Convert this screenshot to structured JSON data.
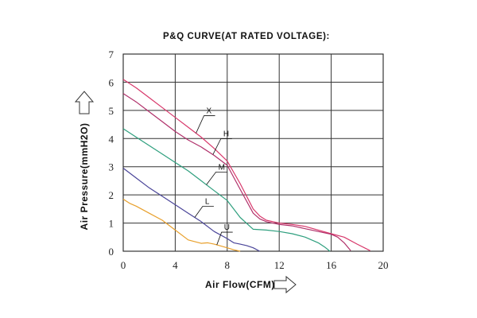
{
  "chart_data": {
    "type": "line",
    "title": "P&Q CURVE(AT RATED VOLTAGE):",
    "xlabel": "Air Flow(CFM)",
    "ylabel": "Air Pressure(mmH2O)",
    "xlim": [
      0,
      20
    ],
    "ylim": [
      0,
      7
    ],
    "xticks": [
      0,
      4,
      8,
      12,
      16,
      20
    ],
    "yticks": [
      0,
      1,
      2,
      3,
      4,
      5,
      6,
      7
    ],
    "grid": true,
    "legend": "inline labels with leader lines",
    "series": [
      {
        "name": "X",
        "color": "#d8386b",
        "x": [
          0,
          1,
          2,
          3,
          4,
          5,
          6,
          7,
          8,
          9,
          10,
          10.5,
          11,
          12,
          13,
          14,
          15,
          16,
          17,
          18,
          19
        ],
        "y": [
          6.1,
          5.8,
          5.45,
          5.1,
          4.75,
          4.4,
          4.05,
          3.65,
          3.2,
          2.4,
          1.5,
          1.25,
          1.1,
          1.0,
          0.95,
          0.88,
          0.75,
          0.62,
          0.5,
          0.25,
          0.02
        ]
      },
      {
        "name": "H",
        "color": "#b0306a",
        "x": [
          0,
          1,
          2,
          3,
          4,
          5,
          6,
          7,
          8,
          9,
          10,
          10.5,
          11,
          12,
          13,
          14,
          15,
          16,
          16.5,
          17,
          17.5
        ],
        "y": [
          5.6,
          5.3,
          4.95,
          4.6,
          4.25,
          3.95,
          3.7,
          3.4,
          3.05,
          2.2,
          1.35,
          1.15,
          1.05,
          0.95,
          0.9,
          0.8,
          0.7,
          0.6,
          0.5,
          0.3,
          0.02
        ]
      },
      {
        "name": "M",
        "color": "#2e9f7e",
        "x": [
          0,
          1,
          2,
          3,
          4,
          5,
          6,
          7,
          8,
          9,
          10,
          11,
          12,
          13,
          14,
          15,
          15.5,
          15.9
        ],
        "y": [
          4.35,
          4.05,
          3.75,
          3.45,
          3.15,
          2.85,
          2.5,
          2.15,
          1.8,
          1.2,
          0.78,
          0.75,
          0.7,
          0.62,
          0.5,
          0.3,
          0.15,
          0.0
        ]
      },
      {
        "name": "L",
        "color": "#4a4599",
        "x": [
          0,
          1,
          2,
          3,
          4,
          5,
          6,
          7,
          8,
          8.5,
          9,
          9.5,
          10,
          10.5
        ],
        "y": [
          2.95,
          2.6,
          2.25,
          1.95,
          1.65,
          1.35,
          1.05,
          0.7,
          0.45,
          0.3,
          0.25,
          0.2,
          0.12,
          0.0
        ]
      },
      {
        "name": "U",
        "color": "#e8a02c",
        "x": [
          0,
          0.5,
          1,
          2,
          3,
          4,
          5,
          6,
          6.5,
          7,
          8,
          8.5,
          9
        ],
        "y": [
          1.85,
          1.7,
          1.6,
          1.35,
          1.1,
          0.75,
          0.4,
          0.28,
          0.3,
          0.25,
          0.12,
          0.05,
          0.0
        ]
      }
    ]
  }
}
